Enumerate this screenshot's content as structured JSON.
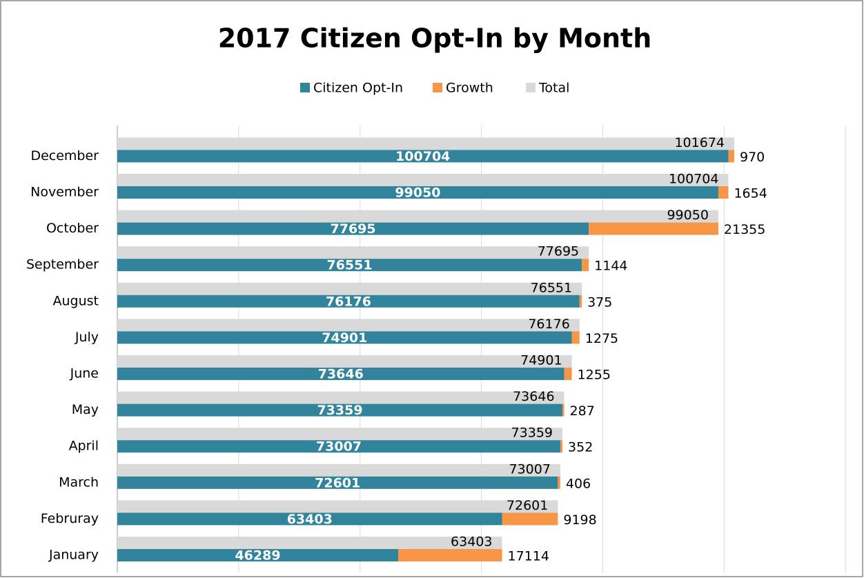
{
  "chart_data": {
    "type": "bar",
    "orientation": "horizontal",
    "stacked": true,
    "title": "2017 Citizen Opt-In by Month",
    "categories": [
      "January",
      "Februray",
      "March",
      "April",
      "May",
      "June",
      "July",
      "August",
      "September",
      "October",
      "November",
      "December"
    ],
    "series": [
      {
        "name": "Citizen Opt-In",
        "color": "#31849b",
        "values": [
          46289,
          63403,
          72601,
          73007,
          73359,
          73646,
          74901,
          76176,
          76551,
          77695,
          99050,
          100704
        ]
      },
      {
        "name": "Growth",
        "color": "#f79646",
        "values": [
          17114,
          9198,
          406,
          352,
          287,
          1255,
          1275,
          375,
          1144,
          21355,
          1654,
          970
        ]
      },
      {
        "name": "Total",
        "color": "#d9d9d9",
        "values": [
          63403,
          72601,
          73007,
          73359,
          73646,
          74901,
          76176,
          76551,
          77695,
          99050,
          100704,
          101674
        ]
      }
    ],
    "xlim": [
      0,
      120000
    ],
    "xticks": [
      0,
      20000,
      40000,
      60000,
      80000,
      100000,
      120000
    ],
    "grid": true,
    "legend": "top"
  }
}
